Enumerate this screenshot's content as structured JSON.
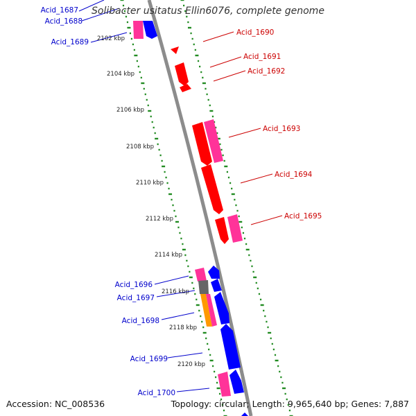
{
  "title": "Solibacter usitatus Ellin6076, complete genome",
  "accession_text": "Accession: NC_008536",
  "summary_text": "Topology: circular; Length: 9,965,640 bp; Genes: 7,887",
  "colors": {
    "backbone": "#8c8c8c",
    "ticks": "#228b22",
    "forward_labels": "#cc0000",
    "reverse_labels": "#0000cc",
    "cds_red": "#ff0000",
    "cds_pink": "#ff3399",
    "cds_blue": "#0000ff",
    "cds_gray": "#666666",
    "cds_orange": "#ff9900"
  },
  "scale_labels": [
    "2102 kbp",
    "2104 kbp",
    "2106 kbp",
    "2108 kbp",
    "2110 kbp",
    "2112 kbp",
    "2114 kbp",
    "2116 kbp",
    "2118 kbp",
    "2120 kbp"
  ],
  "gene_labels_forward": [
    "Acid_1690",
    "Acid_1691",
    "Acid_1692",
    "Acid_1693",
    "Acid_1694",
    "Acid_1695"
  ],
  "gene_labels_reverse": [
    "Acid_1687",
    "Acid_1688",
    "Acid_1689",
    "Acid_1696",
    "Acid_1697",
    "Acid_1698",
    "Acid_1699",
    "Acid_1700"
  ]
}
